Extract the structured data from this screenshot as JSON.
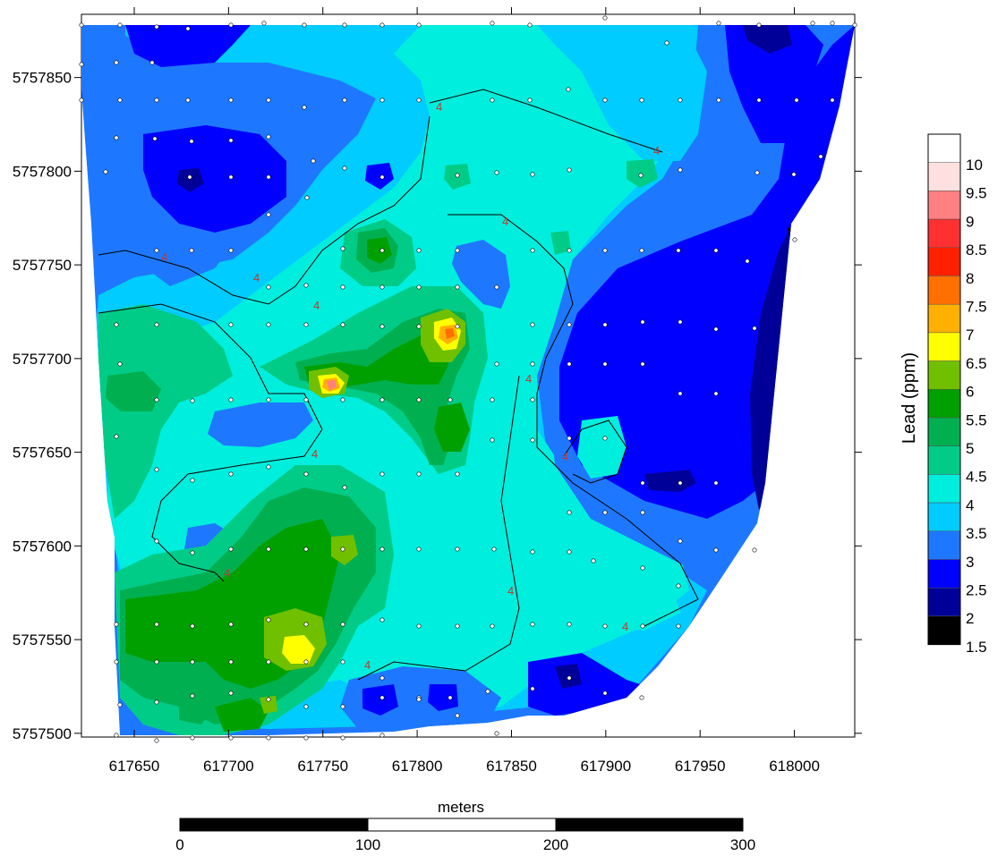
{
  "chart_data": {
    "type": "contour",
    "x_ticks": [
      "617650",
      "617700",
      "617750",
      "617800",
      "617850",
      "617900",
      "617950",
      "618000"
    ],
    "y_ticks": [
      "5757850",
      "5757800",
      "5757750",
      "5757700",
      "5757650",
      "5757600",
      "5757550",
      "5757500"
    ],
    "xlim": [
      617622,
      618032
    ],
    "ylim": [
      5757498,
      5757878
    ],
    "legend": {
      "title": "Lead (ppm)",
      "levels": [
        "10",
        "9.5",
        "9",
        "8.5",
        "8",
        "7.5",
        "7",
        "6.5",
        "6",
        "5.5",
        "5",
        "4.5",
        "4",
        "3.5",
        "3",
        "2.5",
        "2",
        "1.5"
      ],
      "colors": [
        "#ffffff",
        "#ffe0e0",
        "#ff8080",
        "#ff3030",
        "#ff2000",
        "#ff7000",
        "#ffb000",
        "#ffff00",
        "#70c000",
        "#00a000",
        "#00b050",
        "#00cc88",
        "#00eedd",
        "#00ccff",
        "#1e78ff",
        "#0000ff",
        "#000099",
        "#000000"
      ]
    },
    "contour_label": "4",
    "scale_bar": {
      "title": "meters",
      "labels": [
        "0",
        "100",
        "200",
        "300"
      ]
    }
  }
}
